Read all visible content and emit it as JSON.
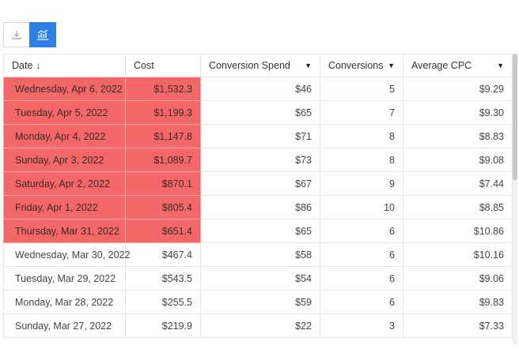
{
  "toolbar": {
    "download_icon": "download-icon",
    "chart_icon": "bar-chart-icon",
    "colors": {
      "active": "#2f7ee6"
    }
  },
  "table": {
    "columns": [
      {
        "label": "Date",
        "sort": "desc"
      },
      {
        "label": "Cost"
      },
      {
        "label": "Conversion Spend",
        "dropdown": true
      },
      {
        "label": "Conversions",
        "dropdown": true
      },
      {
        "label": "Average CPC",
        "dropdown": true
      }
    ],
    "highlight_color": "#f46767",
    "rows": [
      {
        "date": "Wednesday, Apr 6, 2022",
        "cost": "$1,532.3",
        "spend": "$46",
        "conversions": "5",
        "cpc": "$9.29",
        "highlight": true
      },
      {
        "date": "Tuesday, Apr 5, 2022",
        "cost": "$1,199.3",
        "spend": "$65",
        "conversions": "7",
        "cpc": "$9.30",
        "highlight": true
      },
      {
        "date": "Monday, Apr 4, 2022",
        "cost": "$1,147.8",
        "spend": "$71",
        "conversions": "8",
        "cpc": "$8.83",
        "highlight": true
      },
      {
        "date": "Sunday, Apr 3, 2022",
        "cost": "$1,089.7",
        "spend": "$73",
        "conversions": "8",
        "cpc": "$9.08",
        "highlight": true
      },
      {
        "date": "Saturday, Apr 2, 2022",
        "cost": "$870.1",
        "spend": "$67",
        "conversions": "9",
        "cpc": "$7.44",
        "highlight": true
      },
      {
        "date": "Friday, Apr 1, 2022",
        "cost": "$805.4",
        "spend": "$86",
        "conversions": "10",
        "cpc": "$8.85",
        "highlight": true
      },
      {
        "date": "Thursday, Mar 31, 2022",
        "cost": "$651.4",
        "spend": "$65",
        "conversions": "6",
        "cpc": "$10.86",
        "highlight": true
      },
      {
        "date": "Wednesday, Mar 30, 2022",
        "cost": "$467.4",
        "spend": "$58",
        "conversions": "6",
        "cpc": "$10.16",
        "highlight": false
      },
      {
        "date": "Tuesday, Mar 29, 2022",
        "cost": "$543.5",
        "spend": "$54",
        "conversions": "6",
        "cpc": "$9.06",
        "highlight": false
      },
      {
        "date": "Monday, Mar 28, 2022",
        "cost": "$255.5",
        "spend": "$59",
        "conversions": "6",
        "cpc": "$9.83",
        "highlight": false
      },
      {
        "date": "Sunday, Mar 27, 2022",
        "cost": "$219.9",
        "spend": "$22",
        "conversions": "3",
        "cpc": "$7.33",
        "highlight": false
      }
    ]
  }
}
